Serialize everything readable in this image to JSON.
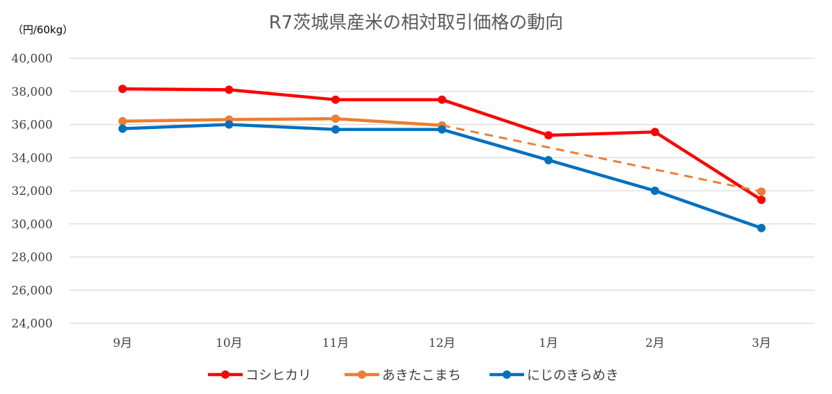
{
  "chart_data": {
    "type": "line",
    "title": "R7茨城県産米の相対取引価格の動向",
    "unit_label": "（円/60kg）",
    "categories": [
      "9月",
      "10月",
      "11月",
      "12月",
      "1月",
      "2月",
      "3月"
    ],
    "y_ticks": [
      "24,000",
      "26,000",
      "28,000",
      "30,000",
      "32,000",
      "34,000",
      "36,000",
      "38,000",
      "40,000"
    ],
    "ylim": [
      24000,
      40000
    ],
    "grid": true,
    "legend_position": "bottom",
    "series": [
      {
        "name": "コシヒカリ",
        "color": "#ff0000",
        "values": [
          38150,
          38100,
          37500,
          37500,
          35350,
          35550,
          31450
        ]
      },
      {
        "name": "あきたこまち",
        "color": "#ed7d31",
        "values": [
          36200,
          36300,
          36350,
          35950,
          null,
          null,
          31950
        ],
        "dashed_gap": true
      },
      {
        "name": "にじのきらめき",
        "color": "#0070c0",
        "values": [
          35750,
          36000,
          35700,
          35700,
          33850,
          32000,
          29750
        ]
      }
    ]
  }
}
